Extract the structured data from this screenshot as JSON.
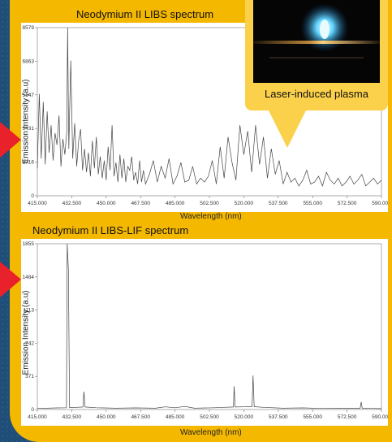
{
  "photo": {
    "caption": "Laser-induced plasma",
    "icon": "plasma-image"
  },
  "colors": {
    "background": "#1f4e79",
    "panel": "#f5b800",
    "arrow": "#e8212b",
    "callout": "#fbd04a",
    "series": "#444444"
  },
  "chart_data": [
    {
      "type": "line",
      "title": "Neodymium II LIBS spectrum",
      "xlabel": "Wavelength (nm)",
      "ylabel": "Emission Intensity (a.u)",
      "xlim": [
        415.0,
        590.0
      ],
      "ylim": [
        0,
        8579
      ],
      "xticks": [
        "415.000",
        "432.500",
        "450.000",
        "467.500",
        "485.000",
        "502.500",
        "520.000",
        "537.500",
        "555.000",
        "572.500",
        "590.000"
      ],
      "yticks": [
        "0",
        "1716",
        "3431",
        "5147",
        "6863",
        "8579"
      ],
      "grid": false,
      "legend": "none",
      "series": [
        {
          "x": [
            415,
            416,
            417,
            418,
            419,
            420,
            421,
            422,
            423,
            424,
            425,
            426,
            427,
            428,
            429,
            430,
            430.4,
            431,
            432,
            433,
            434,
            435,
            436,
            437,
            438,
            439,
            440,
            441,
            442,
            443,
            444,
            445,
            446,
            447,
            448,
            449,
            450,
            451,
            452,
            453,
            454,
            455,
            456,
            457,
            458,
            459,
            460,
            461,
            462,
            463,
            464,
            465,
            466,
            467,
            468,
            469,
            470,
            472,
            474,
            476,
            478,
            480,
            482,
            484,
            486,
            488,
            490,
            492,
            494,
            496,
            498,
            500,
            502,
            504,
            506,
            508,
            510,
            512,
            514,
            516,
            518,
            520,
            522,
            524,
            526,
            528,
            530,
            532,
            534,
            536,
            538,
            540,
            542,
            544,
            546,
            548,
            550,
            552,
            554,
            556,
            558,
            560,
            562,
            564,
            566,
            568,
            570,
            572,
            574,
            576,
            578,
            580,
            582,
            584,
            586,
            588,
            590
          ],
          "y": [
            1400,
            5200,
            1900,
            4800,
            1600,
            4300,
            2200,
            3600,
            1800,
            3200,
            2600,
            4100,
            1500,
            2900,
            2100,
            3300,
            8579,
            2400,
            6900,
            1900,
            3700,
            1500,
            2800,
            3400,
            1300,
            2400,
            1200,
            2200,
            1000,
            2800,
            1400,
            3000,
            1100,
            2000,
            900,
            1800,
            800,
            2500,
            1300,
            3600,
            1000,
            1700,
            700,
            2100,
            900,
            1900,
            700,
            1500,
            1300,
            2000,
            800,
            1200,
            600,
            1800,
            700,
            1300,
            600,
            1100,
            1800,
            700,
            1500,
            900,
            1900,
            600,
            1000,
            1700,
            700,
            800,
            1500,
            600,
            900,
            700,
            1000,
            1800,
            600,
            2500,
            900,
            3000,
            1700,
            800,
            3600,
            2100,
            3300,
            1200,
            3600,
            1600,
            3000,
            900,
            2400,
            1100,
            1800,
            600,
            1200,
            700,
            900,
            500,
            800,
            1300,
            600,
            700,
            1000,
            500,
            1200,
            800,
            600,
            900,
            500,
            700,
            1000,
            600,
            800,
            1100,
            500,
            700,
            900,
            600,
            800
          ]
        }
      ]
    },
    {
      "type": "line",
      "title": "Neodymium II LIBS-LIF spectrum",
      "xlabel": "Wavelength (nm)",
      "ylabel": "Emission Intensity (a.u)",
      "xlim": [
        415.0,
        590.0
      ],
      "ylim": [
        0,
        1855
      ],
      "xticks": [
        "415.000",
        "432.500",
        "450.000",
        "467.500",
        "485.000",
        "502.500",
        "520.000",
        "537.500",
        "555.000",
        "572.500",
        "590.000"
      ],
      "yticks": [
        "0",
        "371",
        "742",
        "1113",
        "1484",
        "1855"
      ],
      "grid": false,
      "legend": "none",
      "series": [
        {
          "x": [
            415,
            420,
            425,
            429.8,
            430.2,
            430.8,
            431.4,
            435,
            438.2,
            438.7,
            439.3,
            445,
            455,
            465,
            475,
            480,
            485,
            490,
            495,
            505,
            510,
            514.7,
            515.1,
            515.6,
            520,
            524.2,
            524.7,
            525.3,
            530,
            540,
            550,
            560,
            570,
            579.2,
            579.7,
            580.2,
            585,
            590
          ],
          "y": [
            12,
            15,
            18,
            20,
            1855,
            1560,
            22,
            25,
            28,
            200,
            28,
            20,
            15,
            18,
            15,
            30,
            20,
            35,
            15,
            20,
            25,
            28,
            260,
            28,
            30,
            32,
            380,
            32,
            25,
            15,
            18,
            12,
            15,
            15,
            85,
            15,
            12,
            10
          ]
        }
      ]
    }
  ]
}
